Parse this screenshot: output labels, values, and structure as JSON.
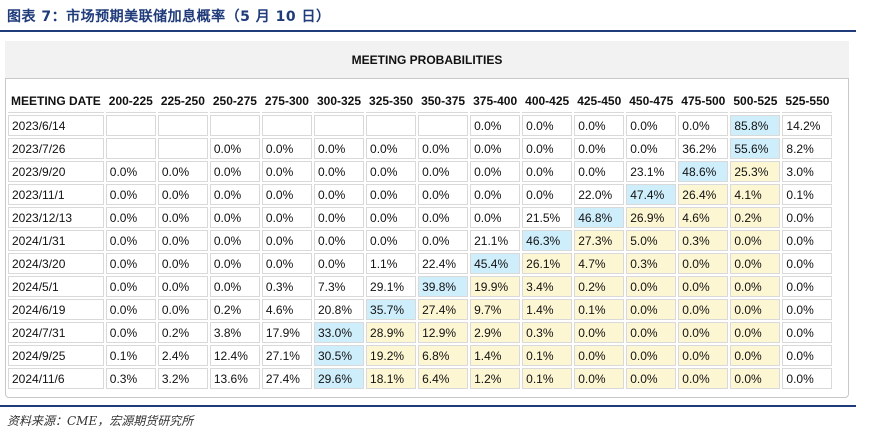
{
  "figure_title": "图表 7：市场预期美联储加息概率（5 月 10 日）",
  "table_title": "MEETING PROBABILITIES",
  "columns": [
    "MEETING DATE",
    "200-225",
    "225-250",
    "250-275",
    "275-300",
    "300-325",
    "325-350",
    "350-375",
    "375-400",
    "400-425",
    "425-450",
    "450-475",
    "475-500",
    "500-525",
    "525-550"
  ],
  "rows": [
    {
      "date": "2023/6/14",
      "values": [
        "",
        "",
        "",
        "",
        "",
        "",
        "",
        "0.0%",
        "0.0%",
        "0.0%",
        "0.0%",
        "0.0%",
        "85.8%",
        "14.2%"
      ],
      "shade": [
        "",
        "",
        "",
        "",
        "",
        "",
        "",
        "",
        "",
        "",
        "",
        "",
        "hi",
        ""
      ]
    },
    {
      "date": "2023/7/26",
      "values": [
        "",
        "",
        "0.0%",
        "0.0%",
        "0.0%",
        "0.0%",
        "0.0%",
        "0.0%",
        "0.0%",
        "0.0%",
        "0.0%",
        "36.2%",
        "55.6%",
        "8.2%"
      ],
      "shade": [
        "",
        "",
        "",
        "",
        "",
        "",
        "",
        "",
        "",
        "",
        "",
        "",
        "hi",
        ""
      ]
    },
    {
      "date": "2023/9/20",
      "values": [
        "0.0%",
        "0.0%",
        "0.0%",
        "0.0%",
        "0.0%",
        "0.0%",
        "0.0%",
        "0.0%",
        "0.0%",
        "0.0%",
        "23.1%",
        "48.6%",
        "25.3%",
        "3.0%"
      ],
      "shade": [
        "",
        "",
        "",
        "",
        "",
        "",
        "",
        "",
        "",
        "",
        "",
        "hi",
        "mid",
        ""
      ]
    },
    {
      "date": "2023/11/1",
      "values": [
        "0.0%",
        "0.0%",
        "0.0%",
        "0.0%",
        "0.0%",
        "0.0%",
        "0.0%",
        "0.0%",
        "0.0%",
        "22.0%",
        "47.4%",
        "26.4%",
        "4.1%",
        "0.1%"
      ],
      "shade": [
        "",
        "",
        "",
        "",
        "",
        "",
        "",
        "",
        "",
        "",
        "hi",
        "mid",
        "mid",
        ""
      ]
    },
    {
      "date": "2023/12/13",
      "values": [
        "0.0%",
        "0.0%",
        "0.0%",
        "0.0%",
        "0.0%",
        "0.0%",
        "0.0%",
        "0.0%",
        "21.5%",
        "46.8%",
        "26.9%",
        "4.6%",
        "0.2%",
        "0.0%"
      ],
      "shade": [
        "",
        "",
        "",
        "",
        "",
        "",
        "",
        "",
        "",
        "hi",
        "mid",
        "mid",
        "mid",
        ""
      ]
    },
    {
      "date": "2024/1/31",
      "values": [
        "0.0%",
        "0.0%",
        "0.0%",
        "0.0%",
        "0.0%",
        "0.0%",
        "0.0%",
        "21.1%",
        "46.3%",
        "27.3%",
        "5.0%",
        "0.3%",
        "0.0%",
        "0.0%"
      ],
      "shade": [
        "",
        "",
        "",
        "",
        "",
        "",
        "",
        "",
        "hi",
        "mid",
        "mid",
        "mid",
        "mid",
        ""
      ]
    },
    {
      "date": "2024/3/20",
      "values": [
        "0.0%",
        "0.0%",
        "0.0%",
        "0.0%",
        "0.0%",
        "1.1%",
        "22.4%",
        "45.4%",
        "26.1%",
        "4.7%",
        "0.3%",
        "0.0%",
        "0.0%",
        "0.0%"
      ],
      "shade": [
        "",
        "",
        "",
        "",
        "",
        "",
        "",
        "hi",
        "mid",
        "mid",
        "mid",
        "mid",
        "mid",
        ""
      ]
    },
    {
      "date": "2024/5/1",
      "values": [
        "0.0%",
        "0.0%",
        "0.0%",
        "0.3%",
        "7.3%",
        "29.1%",
        "39.8%",
        "19.9%",
        "3.4%",
        "0.2%",
        "0.0%",
        "0.0%",
        "0.0%",
        "0.0%"
      ],
      "shade": [
        "",
        "",
        "",
        "",
        "",
        "",
        "hi",
        "mid",
        "mid",
        "mid",
        "mid",
        "mid",
        "mid",
        ""
      ]
    },
    {
      "date": "2024/6/19",
      "values": [
        "0.0%",
        "0.0%",
        "0.2%",
        "4.6%",
        "20.8%",
        "35.7%",
        "27.4%",
        "9.7%",
        "1.4%",
        "0.1%",
        "0.0%",
        "0.0%",
        "0.0%",
        "0.0%"
      ],
      "shade": [
        "",
        "",
        "",
        "",
        "",
        "hi",
        "mid",
        "mid",
        "mid",
        "mid",
        "mid",
        "mid",
        "mid",
        ""
      ]
    },
    {
      "date": "2024/7/31",
      "values": [
        "0.0%",
        "0.2%",
        "3.8%",
        "17.9%",
        "33.0%",
        "28.9%",
        "12.9%",
        "2.9%",
        "0.3%",
        "0.0%",
        "0.0%",
        "0.0%",
        "0.0%",
        "0.0%"
      ],
      "shade": [
        "",
        "",
        "",
        "",
        "hi",
        "mid",
        "mid",
        "mid",
        "mid",
        "mid",
        "mid",
        "mid",
        "mid",
        ""
      ]
    },
    {
      "date": "2024/9/25",
      "values": [
        "0.1%",
        "2.4%",
        "12.4%",
        "27.1%",
        "30.5%",
        "19.2%",
        "6.8%",
        "1.4%",
        "0.1%",
        "0.0%",
        "0.0%",
        "0.0%",
        "0.0%",
        "0.0%"
      ],
      "shade": [
        "",
        "",
        "",
        "",
        "hi",
        "mid",
        "mid",
        "mid",
        "mid",
        "mid",
        "mid",
        "mid",
        "mid",
        ""
      ]
    },
    {
      "date": "2024/11/6",
      "values": [
        "0.3%",
        "3.2%",
        "13.6%",
        "27.4%",
        "29.6%",
        "18.1%",
        "6.4%",
        "1.2%",
        "0.1%",
        "0.0%",
        "0.0%",
        "0.0%",
        "0.0%",
        "0.0%"
      ],
      "shade": [
        "",
        "",
        "",
        "",
        "hi",
        "mid",
        "mid",
        "mid",
        "mid",
        "mid",
        "mid",
        "mid",
        "mid",
        ""
      ]
    }
  ],
  "source": "资料来源：CME，宏源期货研究所",
  "colors": {
    "highlight": "#cfeefc",
    "shade": "#fdf6d2",
    "rule": "#1f3b7a"
  }
}
